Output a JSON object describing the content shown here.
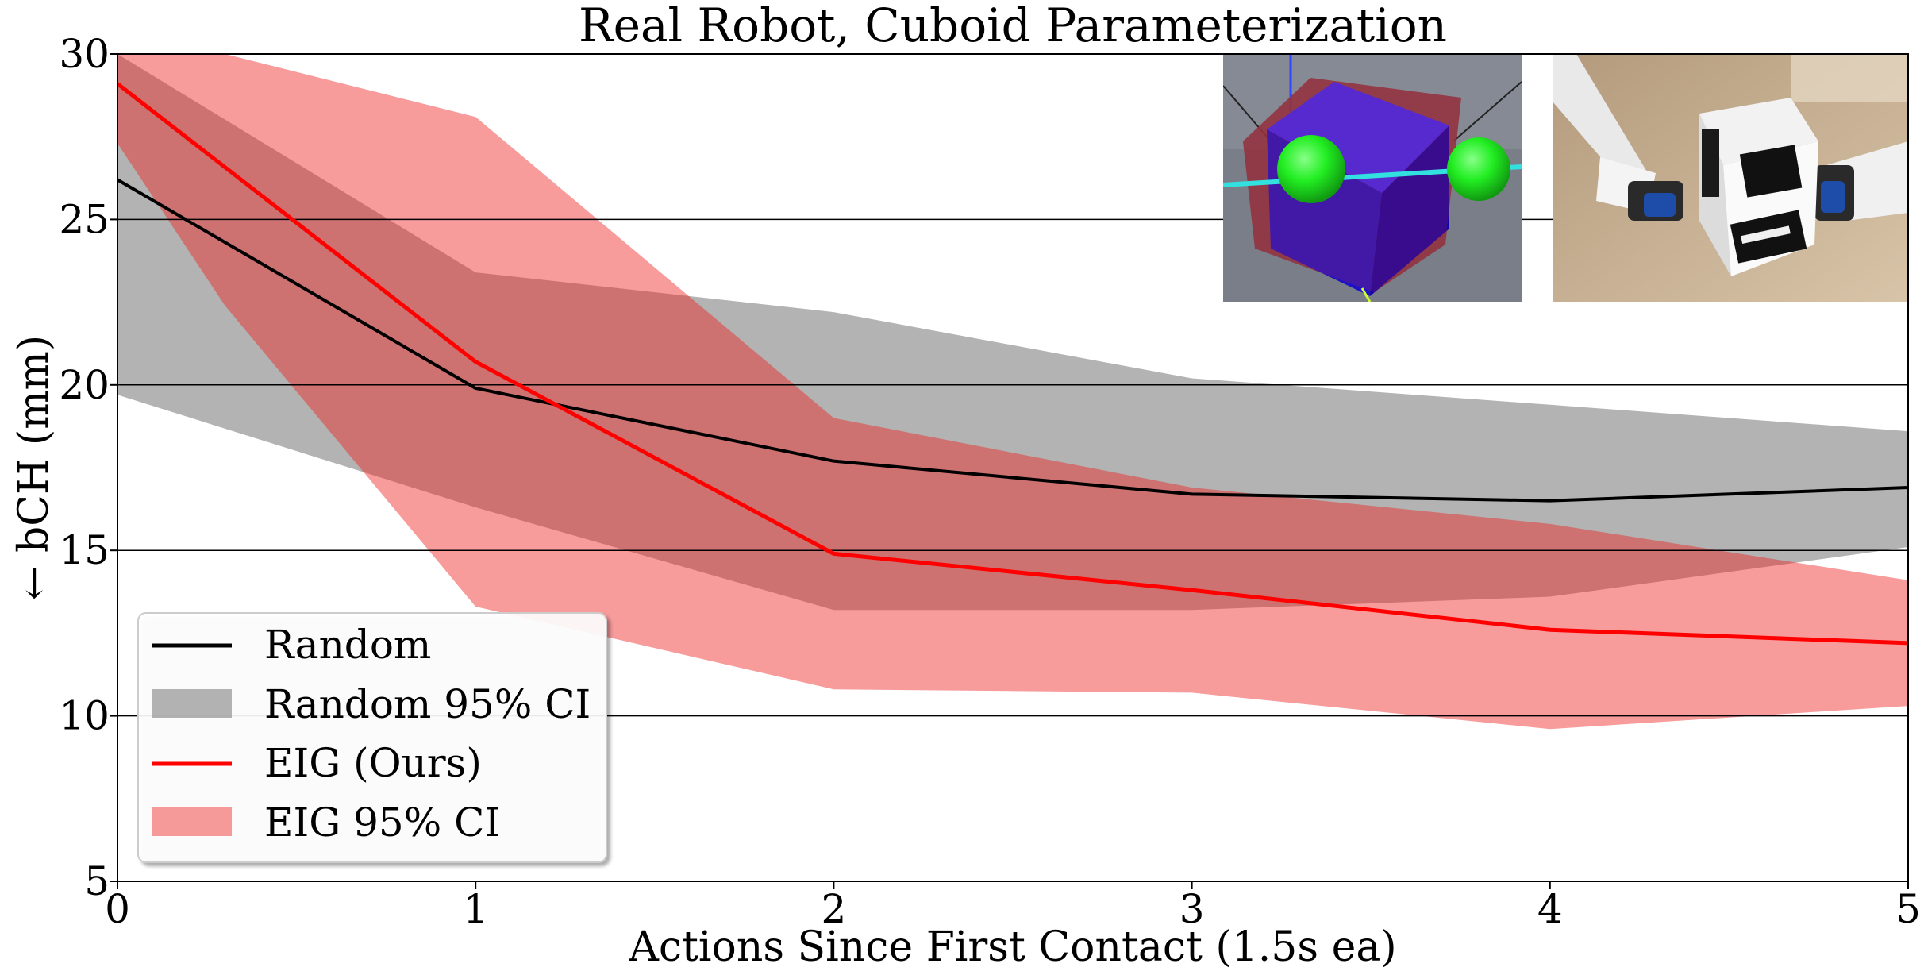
{
  "chart_data": {
    "type": "line",
    "title": "Real Robot, Cuboid Parameterization",
    "xlabel": "Actions Since First Contact (1.5s ea)",
    "ylabel": "← bCH (mm)",
    "xlim": [
      0,
      5
    ],
    "ylim": [
      5,
      30
    ],
    "x_ticks": [
      0,
      1,
      2,
      3,
      4,
      5
    ],
    "y_ticks": [
      5,
      10,
      15,
      20,
      25,
      30
    ],
    "grid": "horizontal",
    "legend_position": "lower-left",
    "x": [
      0,
      1,
      2,
      3,
      4,
      5
    ],
    "series": [
      {
        "name": "Random",
        "color": "#000000",
        "values": [
          26.2,
          19.9,
          17.7,
          16.7,
          16.5,
          16.9
        ]
      },
      {
        "name": "EIG (Ours)",
        "color": "#ff0000",
        "values": [
          29.1,
          20.7,
          14.9,
          13.8,
          12.6,
          12.2
        ]
      }
    ],
    "bands": [
      {
        "name": "Random 95% CI",
        "color": "#999999",
        "opacity": 0.75,
        "x": [
          0,
          1,
          2,
          3,
          4,
          5
        ],
        "lower": [
          19.7,
          16.3,
          13.2,
          13.2,
          13.6,
          15.1
        ],
        "upper": [
          30.0,
          23.4,
          22.2,
          20.2,
          19.4,
          18.6
        ]
      },
      {
        "name": "EIG 95% CI",
        "color": "#ee2222",
        "opacity": 0.45,
        "x": [
          0,
          0.3,
          1,
          2,
          3,
          4,
          5
        ],
        "lower": [
          27.3,
          22.4,
          13.3,
          10.8,
          10.7,
          9.6,
          10.3
        ],
        "upper": [
          30.0,
          30.0,
          28.1,
          19.0,
          16.9,
          15.8,
          14.1
        ]
      }
    ],
    "insets": [
      {
        "name": "simulation-render",
        "description_icon": "cuboid-render-icon"
      },
      {
        "name": "robot-photo",
        "description_icon": "robot-gripper-photo-icon"
      }
    ]
  }
}
